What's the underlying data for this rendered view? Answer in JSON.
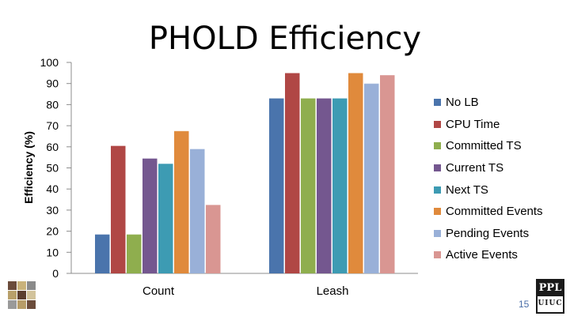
{
  "slide": {
    "title": "PHOLD Efficiency",
    "page_number": "15",
    "logo_right_top": "PPL",
    "logo_right_bottom": "UIUC"
  },
  "colors": {
    "No LB": "#4a74ac",
    "CPU Time": "#b04745",
    "Committed TS": "#8fae4e",
    "Current TS": "#74578f",
    "Next TS": "#3d9bb3",
    "Committed Events": "#e08a3c",
    "Pending Events": "#99b0d8",
    "Active Events": "#d99692"
  },
  "chart_data": {
    "type": "bar",
    "title": "PHOLD Efficiency",
    "xlabel": "",
    "ylabel": "Efficiency (%)",
    "ylim": [
      0,
      100
    ],
    "yticks": [
      0,
      10,
      20,
      30,
      40,
      50,
      60,
      70,
      80,
      90,
      100
    ],
    "grid": false,
    "legend": "right",
    "categories": [
      "Count",
      "Leash"
    ],
    "series": [
      {
        "name": "No LB",
        "values": [
          18.5,
          83
        ]
      },
      {
        "name": "CPU Time",
        "values": [
          60.5,
          95
        ]
      },
      {
        "name": "Committed TS",
        "values": [
          18.5,
          83
        ]
      },
      {
        "name": "Current TS",
        "values": [
          54.5,
          83
        ]
      },
      {
        "name": "Next TS",
        "values": [
          52,
          83
        ]
      },
      {
        "name": "Committed Events",
        "values": [
          67.5,
          95
        ]
      },
      {
        "name": "Pending Events",
        "values": [
          59,
          90
        ]
      },
      {
        "name": "Active Events",
        "values": [
          32.5,
          94
        ]
      }
    ]
  }
}
